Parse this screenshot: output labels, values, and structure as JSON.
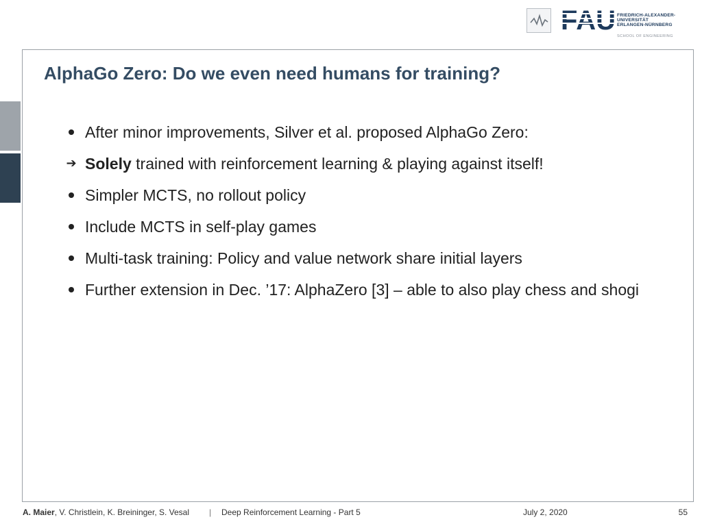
{
  "header": {
    "logo_word": "FAU",
    "university_lines": [
      "FRIEDRICH-ALEXANDER-",
      "UNIVERSITÄT",
      "ERLANGEN-NÜRNBERG"
    ],
    "school": "SCHOOL OF ENGINEERING",
    "brand_color": "#1d3a5c"
  },
  "slide": {
    "title": "AlphaGo Zero: Do we even need humans for training?",
    "bullets": [
      {
        "marker": "dot",
        "bold": "",
        "text": "After minor improvements, Silver et al. proposed AlphaGo Zero:"
      },
      {
        "marker": "arrow-icon",
        "bold": "Solely",
        "text": " trained with reinforcement learning & playing against itself!"
      },
      {
        "marker": "dot",
        "bold": "",
        "text": "Simpler MCTS, no rollout policy"
      },
      {
        "marker": "dot",
        "bold": "",
        "text": "Include MCTS in self-play games"
      },
      {
        "marker": "dot",
        "bold": "",
        "text": "Multi-task training: Policy and value network share initial layers"
      },
      {
        "marker": "dot",
        "bold": "",
        "text": "Further extension in Dec. ’17: AlphaZero [3] – able to also play chess and shogi"
      }
    ]
  },
  "footer": {
    "author_bold": "A. Maier",
    "authors_rest": ", V. Christlein, K. Breininger, S. Vesal",
    "separator": "|",
    "course": "Deep Reinforcement Learning - Part 5",
    "date": "July 2, 2020",
    "page": "55"
  }
}
